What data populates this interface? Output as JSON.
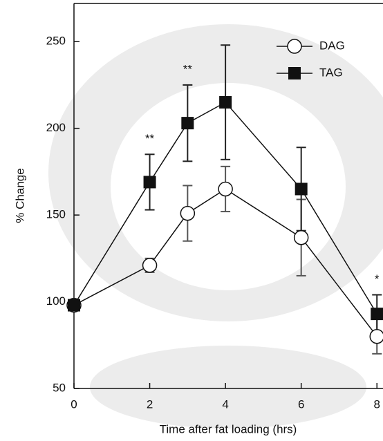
{
  "chart_data": {
    "type": "line",
    "x_label": "Time after fat loading (hrs)",
    "y_label": "% Change",
    "x": [
      0,
      2,
      3,
      4,
      6,
      8
    ],
    "series": [
      {
        "name": "DAG",
        "color": "#ffffff",
        "marker": "circle",
        "values": [
          98,
          121,
          151,
          165,
          137,
          80
        ],
        "errors": [
          null,
          4,
          16,
          13,
          22,
          10
        ]
      },
      {
        "name": "TAG",
        "color": "#111111",
        "marker": "square",
        "values": [
          98,
          169,
          203,
          215,
          165,
          93
        ],
        "errors": [
          null,
          16,
          22,
          33,
          24,
          11
        ]
      }
    ],
    "annotations": [
      {
        "text": "**",
        "x": 2
      },
      {
        "text": "**",
        "x": 3
      },
      {
        "text": "*",
        "x": 8
      }
    ],
    "xlim": [
      0,
      8.16
    ],
    "xticks": [
      0,
      2,
      4,
      6,
      8
    ],
    "ylim": [
      50,
      272
    ],
    "yticks": [
      50,
      100,
      150,
      200,
      250
    ],
    "legend": "upper right"
  }
}
